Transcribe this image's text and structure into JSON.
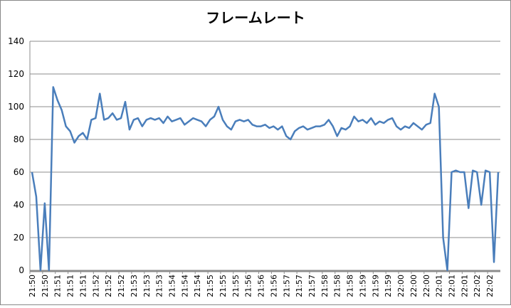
{
  "chart_data": {
    "type": "line",
    "title": "フレームレート",
    "categories": [
      "21:50",
      null,
      null,
      "21:50",
      null,
      null,
      "21:51",
      null,
      null,
      "21:51",
      null,
      null,
      "21:51",
      null,
      null,
      "21:52",
      null,
      null,
      "21:52",
      null,
      null,
      "21:52",
      null,
      null,
      "21:53",
      null,
      null,
      "21:53",
      null,
      null,
      "21:53",
      null,
      null,
      "21:54",
      null,
      null,
      "21:54",
      null,
      null,
      "21:54",
      null,
      null,
      "21:55",
      null,
      null,
      "21:55",
      null,
      null,
      "21:55",
      null,
      null,
      "21:56",
      null,
      null,
      "21:56",
      null,
      null,
      "21:56",
      null,
      null,
      "21:57",
      null,
      null,
      "21:57",
      null,
      null,
      "21:57",
      null,
      null,
      "21:58",
      null,
      null,
      "21:58",
      null,
      null,
      "21:58",
      null,
      null,
      "21:59",
      null,
      null,
      "21:59",
      null,
      null,
      "21:59",
      null,
      null,
      "22:00",
      null,
      null,
      "22:00",
      null,
      null,
      "22:00",
      null,
      null,
      "22:01",
      null,
      null,
      "22:01",
      null,
      null,
      "22:01",
      null,
      null,
      "22:02",
      null,
      null,
      "22:02",
      null,
      null
    ],
    "values": [
      60,
      45,
      0,
      41,
      0,
      112,
      104,
      98,
      88,
      85,
      78,
      82,
      84,
      80,
      92,
      93,
      108,
      92,
      93,
      96,
      92,
      93,
      103,
      86,
      92,
      93,
      88,
      92,
      93,
      92,
      93,
      90,
      94,
      91,
      92,
      93,
      89,
      91,
      93,
      92,
      91,
      88,
      92,
      94,
      100,
      92,
      88,
      86,
      91,
      92,
      91,
      92,
      89,
      88,
      88,
      89,
      87,
      88,
      86,
      88,
      82,
      80,
      85,
      87,
      88,
      86,
      87,
      88,
      88,
      89,
      92,
      88,
      82,
      87,
      86,
      88,
      94,
      91,
      92,
      90,
      93,
      89,
      91,
      90,
      92,
      93,
      88,
      86,
      88,
      87,
      90,
      88,
      86,
      89,
      90,
      108,
      100,
      20,
      0,
      60,
      61,
      60,
      60,
      38,
      61,
      60,
      40,
      61,
      60,
      5,
      60
    ],
    "color": "#4a7ebb",
    "ylim": [
      0,
      140
    ],
    "yticks": [
      0,
      20,
      40,
      60,
      80,
      100,
      120,
      140
    ],
    "grid": true
  }
}
